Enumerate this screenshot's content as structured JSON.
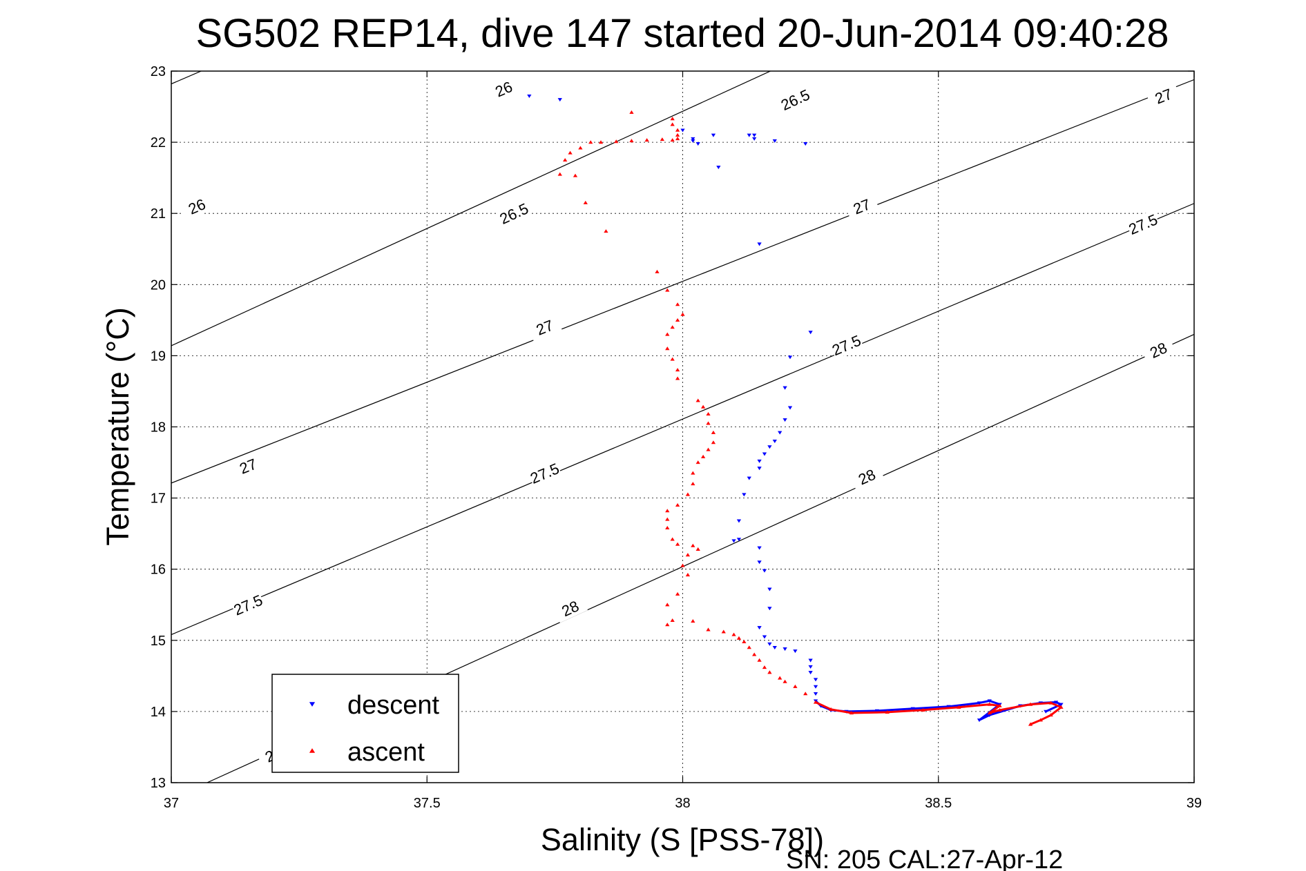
{
  "chart_data": {
    "type": "scatter",
    "title": "SG502 REP14, dive 147 started 20-Jun-2014 09:40:28",
    "xlabel": "Salinity (S [PSS-78])",
    "ylabel": "Temperature (°C)",
    "footer": "SN: 205  CAL:27-Apr-12",
    "xlim": [
      37,
      39
    ],
    "ylim": [
      13,
      23
    ],
    "x_ticks": [
      37,
      37.5,
      38,
      38.5,
      39
    ],
    "x_tick_labels": [
      "37",
      "37.5",
      "38",
      "38.5",
      "39"
    ],
    "y_ticks": [
      13,
      14,
      15,
      16,
      17,
      18,
      19,
      20,
      21,
      22,
      23
    ],
    "y_tick_labels": [
      "13",
      "14",
      "15",
      "16",
      "17",
      "18",
      "19",
      "20",
      "21",
      "22",
      "23"
    ],
    "grid": true,
    "legend": {
      "placement": "bottom-left",
      "entries": [
        "descent",
        "ascent"
      ]
    },
    "colors": {
      "descent": "#0000ff",
      "ascent": "#ff0000",
      "contour": "#000000"
    },
    "density_contours": [
      {
        "level": "26",
        "points": [
          [
            37.0,
            22.82
          ],
          [
            39.0,
            29.0
          ]
        ],
        "labels": [
          {
            "s": 37.05,
            "t": 21.1
          },
          {
            "s": 37.65,
            "t": 22.75
          }
        ]
      },
      {
        "level": "26.5",
        "points": [
          [
            37.0,
            19.14
          ],
          [
            39.0,
            25.73
          ]
        ],
        "labels": [
          {
            "s": 37.67,
            "t": 21.0
          },
          {
            "s": 38.22,
            "t": 22.6
          }
        ]
      },
      {
        "level": "27",
        "points": [
          [
            37.0,
            17.21
          ],
          [
            39.0,
            22.88
          ]
        ],
        "labels": [
          {
            "s": 37.15,
            "t": 17.45
          },
          {
            "s": 37.73,
            "t": 19.4
          },
          {
            "s": 38.35,
            "t": 21.1
          },
          {
            "s": 38.94,
            "t": 22.65
          }
        ]
      },
      {
        "level": "27.5",
        "points": [
          [
            37.0,
            15.08
          ],
          [
            39.0,
            21.14
          ]
        ],
        "labels": [
          {
            "s": 37.15,
            "t": 15.5
          },
          {
            "s": 37.73,
            "t": 17.35
          },
          {
            "s": 38.32,
            "t": 19.15
          },
          {
            "s": 38.9,
            "t": 20.85
          }
        ]
      },
      {
        "level": "28",
        "points": [
          [
            37.07,
            13.0
          ],
          [
            39.0,
            19.3
          ]
        ],
        "labels": [
          {
            "s": 37.2,
            "t": 13.4
          },
          {
            "s": 37.78,
            "t": 15.45
          },
          {
            "s": 38.36,
            "t": 17.3
          },
          {
            "s": 38.93,
            "t": 19.08
          }
        ]
      }
    ],
    "series": [
      {
        "name": "descent",
        "marker": "down-triangle",
        "points": [
          [
            37.7,
            22.65
          ],
          [
            37.76,
            22.6
          ],
          [
            38.0,
            22.17
          ],
          [
            38.02,
            22.05
          ],
          [
            38.02,
            22.02
          ],
          [
            38.03,
            21.98
          ],
          [
            38.06,
            22.1
          ],
          [
            38.13,
            22.1
          ],
          [
            38.14,
            22.05
          ],
          [
            38.14,
            22.1
          ],
          [
            38.18,
            22.02
          ],
          [
            38.24,
            21.98
          ],
          [
            38.07,
            21.65
          ],
          [
            38.15,
            20.57
          ],
          [
            38.25,
            19.33
          ],
          [
            38.21,
            18.98
          ],
          [
            38.2,
            18.55
          ],
          [
            38.21,
            18.27
          ],
          [
            38.2,
            18.1
          ],
          [
            38.19,
            17.92
          ],
          [
            38.18,
            17.8
          ],
          [
            38.17,
            17.72
          ],
          [
            38.16,
            17.62
          ],
          [
            38.15,
            17.52
          ],
          [
            38.15,
            17.42
          ],
          [
            38.13,
            17.28
          ],
          [
            38.12,
            17.05
          ],
          [
            38.11,
            16.68
          ],
          [
            38.1,
            16.4
          ],
          [
            38.11,
            16.42
          ],
          [
            38.15,
            16.3
          ],
          [
            38.15,
            16.1
          ],
          [
            38.16,
            15.98
          ],
          [
            38.17,
            15.72
          ],
          [
            38.17,
            15.45
          ],
          [
            38.15,
            15.18
          ],
          [
            38.16,
            15.05
          ],
          [
            38.17,
            14.95
          ],
          [
            38.18,
            14.9
          ],
          [
            38.2,
            14.88
          ],
          [
            38.22,
            14.85
          ],
          [
            38.25,
            14.72
          ],
          [
            38.25,
            14.63
          ],
          [
            38.25,
            14.55
          ],
          [
            38.26,
            14.45
          ],
          [
            38.26,
            14.35
          ],
          [
            38.26,
            14.25
          ],
          [
            38.26,
            14.15
          ],
          [
            38.27,
            14.08
          ],
          [
            38.29,
            14.02
          ],
          [
            38.32,
            14.0
          ],
          [
            38.38,
            14.01
          ],
          [
            38.45,
            14.04
          ],
          [
            38.52,
            14.07
          ],
          [
            38.58,
            14.12
          ],
          [
            38.6,
            14.15
          ],
          [
            38.62,
            14.1
          ],
          [
            38.58,
            13.88
          ],
          [
            38.6,
            13.95
          ],
          [
            38.66,
            14.08
          ],
          [
            38.7,
            14.12
          ],
          [
            38.73,
            14.13
          ],
          [
            38.74,
            14.1
          ],
          [
            38.71,
            14.0
          ]
        ]
      },
      {
        "name": "ascent",
        "marker": "up-triangle",
        "points": [
          [
            37.9,
            22.42
          ],
          [
            37.98,
            22.33
          ],
          [
            37.98,
            22.25
          ],
          [
            37.99,
            22.17
          ],
          [
            37.99,
            22.1
          ],
          [
            37.99,
            22.05
          ],
          [
            37.98,
            22.03
          ],
          [
            37.96,
            22.04
          ],
          [
            37.93,
            22.03
          ],
          [
            37.9,
            22.02
          ],
          [
            37.87,
            22.01
          ],
          [
            37.84,
            22.0
          ],
          [
            37.82,
            22.0
          ],
          [
            37.8,
            21.92
          ],
          [
            37.78,
            21.85
          ],
          [
            37.77,
            21.75
          ],
          [
            37.76,
            21.55
          ],
          [
            37.79,
            21.53
          ],
          [
            37.81,
            21.15
          ],
          [
            37.85,
            20.75
          ],
          [
            37.95,
            20.18
          ],
          [
            37.97,
            19.92
          ],
          [
            37.99,
            19.72
          ],
          [
            38.0,
            19.58
          ],
          [
            37.99,
            19.5
          ],
          [
            37.98,
            19.4
          ],
          [
            37.97,
            19.3
          ],
          [
            37.97,
            19.1
          ],
          [
            37.98,
            18.95
          ],
          [
            37.99,
            18.8
          ],
          [
            37.99,
            18.68
          ],
          [
            38.03,
            18.37
          ],
          [
            38.04,
            18.28
          ],
          [
            38.05,
            18.18
          ],
          [
            38.05,
            18.05
          ],
          [
            38.06,
            17.92
          ],
          [
            38.06,
            17.78
          ],
          [
            38.05,
            17.68
          ],
          [
            38.04,
            17.58
          ],
          [
            38.03,
            17.5
          ],
          [
            38.02,
            17.35
          ],
          [
            38.02,
            17.2
          ],
          [
            38.01,
            17.05
          ],
          [
            37.99,
            16.9
          ],
          [
            37.97,
            16.82
          ],
          [
            37.97,
            16.7
          ],
          [
            37.97,
            16.58
          ],
          [
            37.98,
            16.42
          ],
          [
            37.99,
            16.35
          ],
          [
            38.02,
            16.33
          ],
          [
            38.03,
            16.28
          ],
          [
            38.01,
            16.2
          ],
          [
            38.0,
            16.05
          ],
          [
            38.01,
            15.92
          ],
          [
            37.99,
            15.65
          ],
          [
            37.97,
            15.5
          ],
          [
            37.98,
            15.28
          ],
          [
            37.97,
            15.22
          ],
          [
            38.02,
            15.27
          ],
          [
            38.05,
            15.15
          ],
          [
            38.08,
            15.12
          ],
          [
            38.1,
            15.08
          ],
          [
            38.11,
            15.03
          ],
          [
            38.12,
            14.98
          ],
          [
            38.13,
            14.9
          ],
          [
            38.14,
            14.8
          ],
          [
            38.15,
            14.72
          ],
          [
            38.16,
            14.62
          ],
          [
            38.17,
            14.55
          ],
          [
            38.19,
            14.47
          ],
          [
            38.2,
            14.42
          ],
          [
            38.22,
            14.35
          ],
          [
            38.24,
            14.25
          ],
          [
            38.26,
            14.13
          ],
          [
            38.29,
            14.03
          ],
          [
            38.33,
            13.98
          ],
          [
            38.4,
            13.99
          ],
          [
            38.47,
            14.02
          ],
          [
            38.54,
            14.06
          ],
          [
            38.6,
            14.1
          ],
          [
            38.62,
            14.08
          ],
          [
            38.6,
            13.98
          ],
          [
            38.62,
            14.02
          ],
          [
            38.68,
            14.1
          ],
          [
            38.72,
            14.12
          ],
          [
            38.74,
            14.06
          ],
          [
            38.72,
            13.95
          ],
          [
            38.7,
            13.88
          ],
          [
            38.68,
            13.82
          ]
        ]
      }
    ]
  }
}
